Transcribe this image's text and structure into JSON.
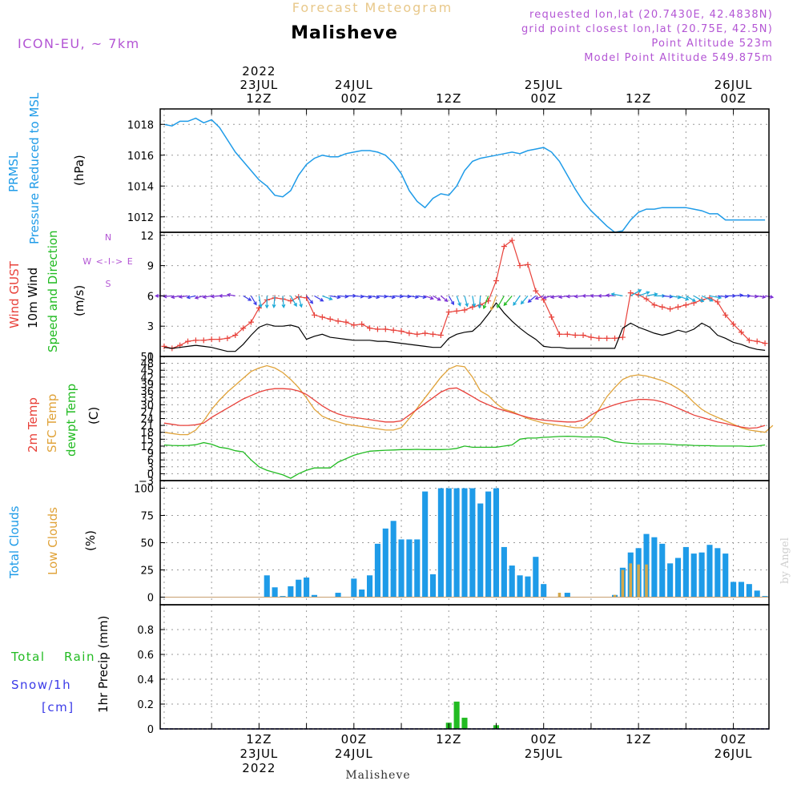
{
  "header": {
    "title": "Forecast Meteogram",
    "location": "Malisheve",
    "model": "ICON-EU, ~ 7km",
    "requested": "requested lon,lat (20.7430E, 42.4838N)",
    "grid_point": "grid point closest lon,lat (20.75E, 42.5N)",
    "point_altitude": "Point Altitude 523m",
    "model_altitude": "Model Point Altitude 549.875m",
    "footer": "Malisheve",
    "credit": "by Angel"
  },
  "colors": {
    "pressure": "#1e9be8",
    "gust": "#e8413a",
    "wind": "#000000",
    "temp2m": "#e8413a",
    "sfc": "#e0a33a",
    "dew": "#22bb22",
    "clouds": "#1e9be8",
    "lowclouds": "#d4a84a",
    "rain": "#22bb22",
    "snow": "#3a3ae8",
    "meta": "#b355d4"
  },
  "time_axis": {
    "top_labels": [
      {
        "t": 12,
        "lines": [
          "2022",
          "23JUL",
          "12Z"
        ]
      },
      {
        "t": 24,
        "lines": [
          "24JUL",
          "00Z"
        ]
      },
      {
        "t": 36,
        "lines": [
          "12Z"
        ]
      },
      {
        "t": 48,
        "lines": [
          "25JUL",
          "00Z"
        ]
      },
      {
        "t": 60,
        "lines": [
          "12Z"
        ]
      },
      {
        "t": 72,
        "lines": [
          "26JUL",
          "00Z"
        ]
      }
    ],
    "bottom_labels": [
      {
        "t": 12,
        "lines": [
          "12Z",
          "23JUL",
          "2022"
        ]
      },
      {
        "t": 24,
        "lines": [
          "00Z",
          "24JUL"
        ]
      },
      {
        "t": 36,
        "lines": [
          "12Z"
        ]
      },
      {
        "t": 48,
        "lines": [
          "00Z",
          "25JUL"
        ]
      },
      {
        "t": 60,
        "lines": [
          "12Z"
        ]
      },
      {
        "t": 72,
        "lines": [
          "00Z",
          "26JUL"
        ]
      }
    ]
  },
  "panels_labels": {
    "pressure": {
      "l1": "PRMSL",
      "l2": "Pressure Reduced to MSL",
      "unit": "(hPa)"
    },
    "wind": {
      "l1": "Wind GUST",
      "l2": "10m Wind",
      "l3": "Speed and Direction",
      "unit": "(m/s)",
      "compass": "W <-I-> E",
      "north": "N",
      "south": "S"
    },
    "temp": {
      "l1": "2m Temp",
      "l2": "SFC Temp",
      "l3": "dewpt Temp",
      "unit": "(C)"
    },
    "clouds": {
      "l1": "Total Clouds",
      "l2": "Low Clouds",
      "unit": "(%)"
    },
    "precip": {
      "l1": "Total",
      "l1b": "Rain",
      "l2": "Snow/1h",
      "l3": "[cm]",
      "unit": "1hr Precip (mm)"
    }
  },
  "chart_data": [
    {
      "type": "line",
      "title": "PRMSL Pressure Reduced to MSL",
      "ylabel": "hPa",
      "ylim": [
        1011,
        1019
      ],
      "yticks": [
        1012,
        1014,
        1016,
        1018
      ],
      "series": [
        {
          "name": "PRMSL",
          "x": [
            0,
            1,
            2,
            3,
            4,
            5,
            6,
            7,
            8,
            9,
            10,
            11,
            12,
            13,
            14,
            15,
            16,
            17,
            18,
            19,
            20,
            21,
            22,
            23,
            24,
            25,
            26,
            27,
            28,
            29,
            30,
            31,
            32,
            33,
            34,
            35,
            36,
            37,
            38,
            39,
            40,
            41,
            42,
            43,
            44,
            45,
            46,
            47,
            48,
            49,
            50,
            51,
            52,
            53,
            54,
            55,
            56,
            57,
            58,
            59,
            60,
            61,
            62,
            63,
            64,
            65,
            66,
            67,
            68,
            69,
            70,
            71,
            72,
            73,
            74,
            75,
            76
          ],
          "values": [
            1018,
            1017.9,
            1018.2,
            1018.2,
            1018.4,
            1018.1,
            1018.3,
            1017.8,
            1017,
            1016.2,
            1015.6,
            1015,
            1014.4,
            1014,
            1013.4,
            1013.3,
            1013.7,
            1014.7,
            1015.4,
            1015.8,
            1016,
            1015.9,
            1015.9,
            1016.1,
            1016.2,
            1016.3,
            1016.3,
            1016.2,
            1016,
            1015.5,
            1014.8,
            1013.7,
            1013,
            1012.6,
            1013.2,
            1013.5,
            1013.4,
            1014,
            1015,
            1015.6,
            1015.8,
            1015.9,
            1016,
            1016.1,
            1016.2,
            1016.1,
            1016.3,
            1016.4,
            1016.5,
            1016.2,
            1015.6,
            1014.7,
            1013.8,
            1013,
            1012.4,
            1011.9,
            1011.4,
            1011,
            1011.1,
            1011.8,
            1012.3,
            1012.5,
            1012.5,
            1012.6,
            1012.6,
            1012.6,
            1012.6,
            1012.5,
            1012.4,
            1012.2,
            1012.2,
            1011.8,
            1011.8,
            1011.8,
            1011.8,
            1011.8,
            1011.8
          ]
        }
      ]
    },
    {
      "type": "line",
      "title": "Wind GUST / 10m Wind",
      "ylabel": "m/s",
      "ylim": [
        0,
        12.3
      ],
      "yticks": [
        0,
        3,
        6,
        9,
        12
      ],
      "series": [
        {
          "name": "Wind GUST",
          "values": [
            1,
            0.8,
            1.1,
            1.5,
            1.6,
            1.6,
            1.7,
            1.7,
            1.8,
            2.1,
            2.8,
            3.4,
            4.8,
            5.6,
            5.8,
            5.7,
            5.5,
            5.9,
            5.8,
            4.1,
            3.9,
            3.7,
            3.5,
            3.4,
            3.1,
            3.2,
            2.8,
            2.7,
            2.7,
            2.6,
            2.5,
            2.3,
            2.2,
            2.3,
            2.2,
            2.1,
            4.4,
            4.5,
            4.6,
            4.9,
            5.1,
            5.5,
            7.5,
            10.9,
            11.5,
            9,
            9.1,
            6.5,
            5.6,
            3.9,
            2.2,
            2.2,
            2.1,
            2.1,
            1.9,
            1.8,
            1.8,
            1.8,
            1.9,
            6.3,
            6.1,
            5.7,
            5.1,
            4.9,
            4.7,
            4.9,
            5.1,
            5.3,
            5.6,
            5.8,
            5.4,
            4.1,
            3.2,
            2.4,
            1.6,
            1.5,
            1.3
          ]
        },
        {
          "name": "10m Wind",
          "values": [
            0.9,
            0.8,
            0.9,
            1,
            1.1,
            1,
            0.9,
            0.7,
            0.5,
            0.5,
            1.2,
            2.1,
            2.9,
            3.2,
            3,
            3,
            3.1,
            2.9,
            1.7,
            2,
            2.2,
            1.9,
            1.8,
            1.7,
            1.6,
            1.6,
            1.6,
            1.5,
            1.5,
            1.4,
            1.3,
            1.2,
            1.1,
            1,
            0.9,
            0.9,
            1.8,
            2.2,
            2.4,
            2.5,
            3.2,
            4.2,
            5.3,
            4.3,
            3.5,
            2.8,
            2.2,
            1.7,
            1,
            0.9,
            0.9,
            0.8,
            0.8,
            0.8,
            0.8,
            0.8,
            0.8,
            0.8,
            2.8,
            3.3,
            2.9,
            2.6,
            2.3,
            2.1,
            2.3,
            2.6,
            2.4,
            2.7,
            3.3,
            2.9,
            2.1,
            1.8,
            1.4,
            1.2,
            0.9,
            0.7,
            0.6
          ]
        }
      ],
      "direction_deg": [
        270,
        265,
        260,
        262,
        258,
        255,
        260,
        265,
        270,
        280,
        120,
        150,
        170,
        180,
        185,
        175,
        150,
        165,
        140,
        120,
        110,
        100,
        95,
        90,
        95,
        100,
        100,
        95,
        100,
        95,
        95,
        100,
        100,
        110,
        120,
        130,
        150,
        160,
        165,
        170,
        185,
        200,
        200,
        210,
        220,
        215,
        220,
        230,
        250,
        255,
        260,
        260,
        265,
        265,
        270,
        270,
        270,
        275,
        280,
        60,
        70,
        80,
        90,
        95,
        100,
        110,
        120,
        120,
        115,
        100,
        95,
        90,
        85,
        90,
        95,
        100,
        100
      ]
    },
    {
      "type": "line",
      "title": "2m Temp / SFC Temp / dewpt Temp",
      "ylabel": "C",
      "ylim": [
        -3,
        51
      ],
      "yticks": [
        -3,
        0,
        3,
        6,
        9,
        12,
        15,
        18,
        21,
        24,
        27,
        30,
        33,
        36,
        39,
        42,
        45,
        48,
        51
      ],
      "series": [
        {
          "name": "2m Temp",
          "values": [
            22,
            21.5,
            21,
            21,
            21.3,
            22,
            24.5,
            26.5,
            28.5,
            30.5,
            32.5,
            34,
            35.5,
            36.5,
            37,
            37,
            36.8,
            36,
            34.5,
            32,
            29.5,
            27.5,
            26,
            25,
            24.5,
            24,
            23.5,
            23,
            22.5,
            22.5,
            23,
            25.5,
            28,
            30.5,
            33,
            35.5,
            37,
            37.3,
            35.5,
            33.5,
            31.5,
            30,
            28.5,
            27.5,
            26.5,
            25.5,
            24.5,
            23.8,
            23.3,
            23,
            22.7,
            22.5,
            22.5,
            23.3,
            25.5,
            27.5,
            28.8,
            30,
            31,
            31.8,
            32.3,
            32.3,
            32,
            31.2,
            30,
            28.5,
            27,
            25.5,
            24.5,
            23.5,
            22.5,
            21.8,
            21,
            20.3,
            19.8,
            20,
            21
          ]
        },
        {
          "name": "SFC Temp",
          "values": [
            18,
            17.5,
            17,
            17,
            19,
            23,
            28,
            32,
            35.5,
            38.5,
            41.5,
            44.5,
            46,
            47,
            46,
            44,
            41,
            37.5,
            33,
            28,
            25,
            23.5,
            22.5,
            21.5,
            21,
            20.5,
            20,
            19.5,
            19,
            19,
            20,
            24,
            28.5,
            33,
            37.5,
            42,
            45.5,
            47,
            46.5,
            42,
            36,
            34,
            30.5,
            28,
            27,
            25.5,
            24,
            23,
            22,
            21.5,
            21,
            20.5,
            20,
            20,
            23,
            28,
            33.5,
            37.5,
            41,
            42.5,
            43,
            42.5,
            41.5,
            40.5,
            39,
            37,
            34.5,
            31,
            28,
            26,
            24.5,
            23,
            21.5,
            20,
            19,
            18.5,
            18,
            21
          ]
        },
        {
          "name": "dewpt Temp",
          "values": [
            12.5,
            12.3,
            12.2,
            12.3,
            12.6,
            13.5,
            12.8,
            11.5,
            11,
            10,
            9.5,
            6,
            3,
            1.5,
            0.5,
            -0.5,
            -2,
            0,
            1.5,
            2.5,
            2.5,
            2.5,
            5,
            6.5,
            8,
            9,
            9.8,
            10,
            10.2,
            10.3,
            10.5,
            10.5,
            10.6,
            10.5,
            10.5,
            10.5,
            10.6,
            11,
            12,
            11.5,
            11.5,
            11.5,
            11.5,
            12,
            12.5,
            15,
            15.5,
            15.5,
            15.8,
            16,
            16.2,
            16.3,
            16.2,
            16,
            16,
            16,
            15.5,
            14,
            13.5,
            13.2,
            13,
            13,
            13,
            13,
            12.8,
            12.5,
            12.5,
            12.3,
            12.2,
            12.2,
            12,
            12,
            12,
            12,
            11.8,
            12,
            12.5
          ]
        }
      ]
    },
    {
      "type": "bar",
      "title": "Total Clouds / Low Clouds",
      "ylabel": "%",
      "ylim": [
        -7,
        107
      ],
      "yticks": [
        0,
        25,
        50,
        75,
        100
      ],
      "series": [
        {
          "name": "Total Clouds",
          "values": [
            0,
            0,
            0,
            0,
            0,
            0,
            0,
            0,
            0,
            0,
            0,
            0,
            0,
            20,
            9,
            1,
            10,
            16,
            18,
            2,
            0,
            0,
            4,
            0,
            17,
            7,
            20,
            49,
            63,
            70,
            53,
            53,
            53,
            97,
            21,
            100,
            100,
            100,
            100,
            100,
            86,
            97,
            100,
            46,
            29,
            20,
            19,
            37,
            12,
            0,
            0,
            4,
            0,
            0,
            0,
            0,
            0,
            2,
            27,
            41,
            45,
            58,
            55,
            49,
            31,
            36,
            46,
            40,
            41,
            48,
            45,
            40,
            14,
            14,
            12,
            6,
            1
          ]
        },
        {
          "name": "Low Clouds",
          "values": [
            0,
            0,
            0,
            0,
            0,
            0,
            0,
            0,
            0,
            0,
            0,
            0,
            0,
            0,
            0,
            0,
            0,
            0,
            0,
            0,
            0,
            0,
            0,
            0,
            0,
            0,
            0,
            0,
            0,
            0,
            0,
            0,
            0,
            0,
            0,
            0,
            0,
            0,
            0,
            0,
            0,
            0,
            0,
            0,
            0,
            0,
            0,
            0,
            0,
            0,
            4,
            0,
            0,
            0,
            0,
            0,
            0,
            2,
            25,
            31,
            30,
            30,
            0,
            0,
            0,
            0,
            0,
            0,
            0,
            0,
            0,
            0,
            0,
            0,
            0,
            0,
            0
          ]
        }
      ]
    },
    {
      "type": "bar",
      "title": "1hr Precip",
      "ylabel": "mm",
      "ylim": [
        0,
        1
      ],
      "yticks": [
        0,
        0.2,
        0.4,
        0.6,
        0.8
      ],
      "series": [
        {
          "name": "Total Rain",
          "values": [
            0,
            0,
            0,
            0,
            0,
            0,
            0,
            0,
            0,
            0,
            0,
            0,
            0,
            0,
            0,
            0,
            0,
            0,
            0,
            0,
            0,
            0,
            0,
            0,
            0,
            0,
            0,
            0,
            0,
            0,
            0,
            0,
            0,
            0,
            0,
            0,
            0.05,
            0.22,
            0.09,
            0,
            0,
            0,
            0.03,
            0,
            0,
            0,
            0,
            0,
            0,
            0,
            0,
            0,
            0,
            0,
            0,
            0,
            0,
            0,
            0,
            0,
            0,
            0,
            0,
            0,
            0,
            0,
            0,
            0,
            0,
            0,
            0,
            0,
            0,
            0,
            0,
            0,
            0
          ]
        },
        {
          "name": "Snow/1h",
          "values": []
        }
      ]
    }
  ]
}
